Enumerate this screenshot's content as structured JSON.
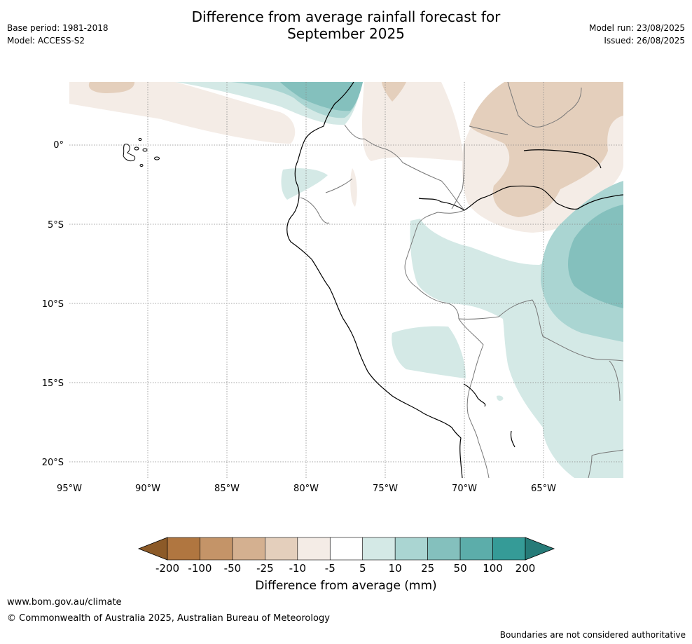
{
  "title_line1": "Difference from average rainfall forecast for",
  "title_line2": "September 2025",
  "base_period": "Base period: 1981-2018",
  "model": "Model: ACCESS-S2",
  "model_run": "Model run: 23/08/2025",
  "issued": "Issued: 26/08/2025",
  "lon_ticks": [
    "95°W",
    "90°W",
    "85°W",
    "80°W",
    "75°W",
    "70°W",
    "65°W"
  ],
  "lat_ticks": [
    "0°",
    "5°S",
    "10°S",
    "15°S",
    "20°S"
  ],
  "colorbar": {
    "title": "Difference from average (mm)",
    "labels": [
      "-200",
      "-100",
      "-50",
      "-25",
      "-10",
      "-5",
      "5",
      "10",
      "25",
      "50",
      "100",
      "200"
    ],
    "colors": [
      "#8c5a28",
      "#b07640",
      "#c49468",
      "#d4b090",
      "#e4cfbc",
      "#f4ece6",
      "#ffffff",
      "#d4e9e6",
      "#aad5d2",
      "#84c0bd",
      "#5cadaa",
      "#359b97",
      "#267b78"
    ]
  },
  "footer_url": "www.bom.gov.au/climate",
  "footer_copyright": "© Commonwealth of Australia 2025, Australian Bureau of Meteorology",
  "disclaimer": "Boundaries are not considered authoritative"
}
